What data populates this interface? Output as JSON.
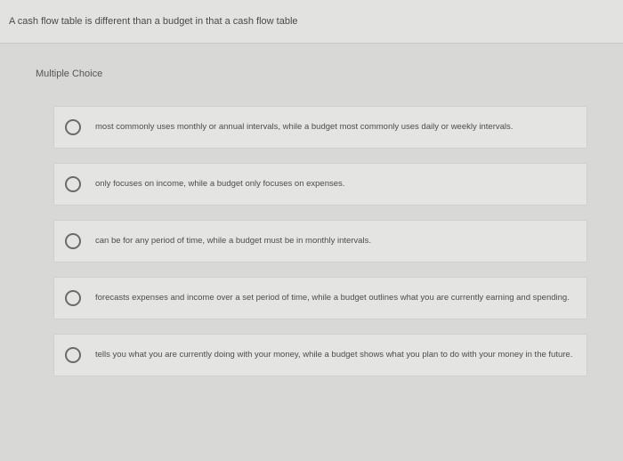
{
  "question": {
    "stem": "A cash flow table is different than a budget in that a cash flow table",
    "type_label": "Multiple Choice",
    "options": [
      {
        "text": "most commonly uses monthly or annual intervals, while a budget most commonly uses daily or weekly intervals."
      },
      {
        "text": "only focuses on income, while a budget only focuses on expenses."
      },
      {
        "text": "can be for any period of time, while a budget must be in monthly intervals."
      },
      {
        "text": "forecasts expenses and income over a set period of time, while a budget outlines what you are currently earning and spending."
      },
      {
        "text": "tells you what you are currently doing with your money, while a budget shows what you plan to do with your money in the future."
      }
    ]
  },
  "colors": {
    "page_bg": "#d8d8d6",
    "stem_bg": "#e2e2e0",
    "option_bg": "#e4e4e2",
    "option_border": "#cfcfcc",
    "radio_border": "#6b6b69",
    "text_color": "#4d4d4b"
  }
}
